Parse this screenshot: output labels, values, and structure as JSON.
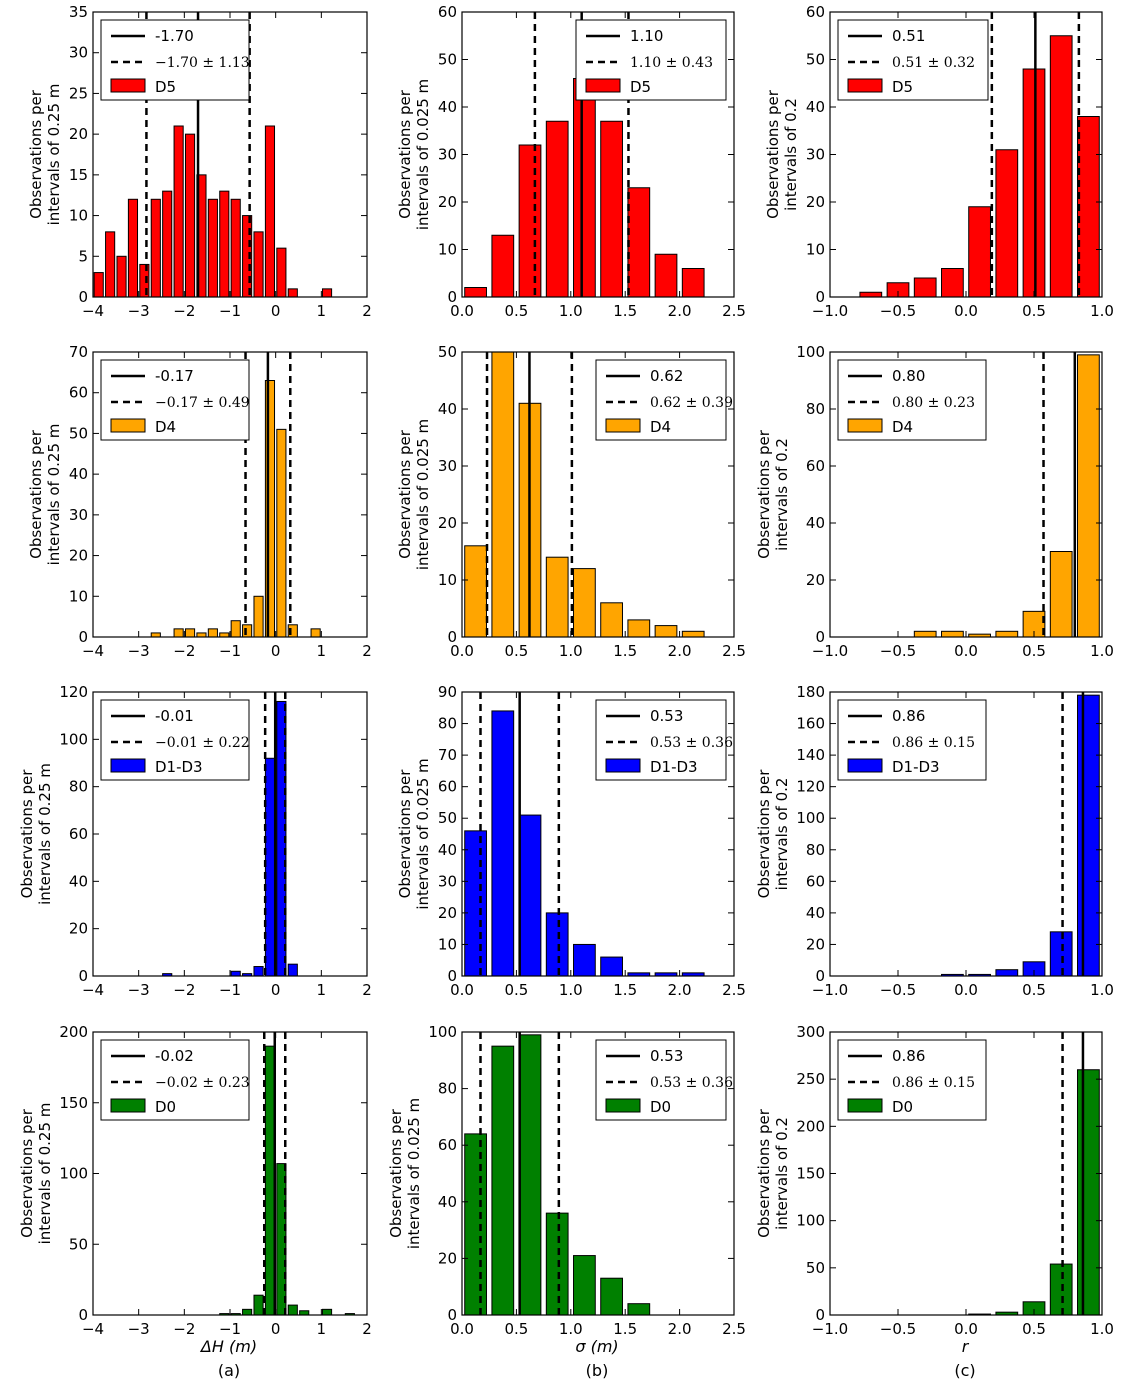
{
  "chart_data": [
    {
      "type": "bar",
      "panel": "a-D5",
      "categories": [
        "-3.875",
        "-3.625",
        "-3.375",
        "-3.125",
        "-2.875",
        "-2.625",
        "-2.375",
        "-2.125",
        "-1.875",
        "-1.625",
        "-1.375",
        "-1.125",
        "-0.875",
        "-0.625",
        "-0.375",
        "-0.125",
        "0.125",
        "0.375",
        "0.625",
        "0.875",
        "1.125"
      ],
      "values": [
        3,
        8,
        5,
        12,
        4,
        12,
        13,
        21,
        20,
        15,
        12,
        13,
        12,
        10,
        8,
        21,
        6,
        1,
        0,
        0,
        1
      ],
      "bar_width": 0.25,
      "xlim": [
        -4,
        2
      ],
      "ylim": [
        0,
        35
      ],
      "xticks": [
        "−4",
        "−3",
        "−2",
        "−1",
        "0",
        "1",
        "2"
      ],
      "yticks": [
        "0",
        "5",
        "10",
        "15",
        "20",
        "25",
        "30",
        "35"
      ],
      "ylabel": [
        "Observations per",
        "intervals of 0.25 m"
      ],
      "mean": -1.7,
      "std": 1.13,
      "color": "#ff0000",
      "legend": {
        "mean": "-1.70",
        "range": "−1.70 ± 1.13",
        "series": "D5",
        "position": "upper left"
      }
    },
    {
      "type": "bar",
      "panel": "b-D5",
      "categories": [
        "0.125",
        "0.375",
        "0.625",
        "0.875",
        "1.125",
        "1.375",
        "1.625",
        "1.875",
        "2.125"
      ],
      "values": [
        2,
        13,
        32,
        37,
        46,
        37,
        23,
        9,
        6
      ],
      "bar_width": 0.25,
      "xlim": [
        0,
        2.5
      ],
      "ylim": [
        0,
        60
      ],
      "xticks": [
        "0.0",
        "0.5",
        "1.0",
        "1.5",
        "2.0",
        "2.5"
      ],
      "yticks": [
        "0",
        "10",
        "20",
        "30",
        "40",
        "50",
        "60"
      ],
      "ylabel": [
        "Observations per",
        "intervals of 0.025 m"
      ],
      "mean": 1.1,
      "std": 0.43,
      "color": "#ff0000",
      "legend": {
        "mean": "1.10",
        "range": "1.10 ± 0.43",
        "series": "D5",
        "position": "upper right"
      }
    },
    {
      "type": "bar",
      "panel": "c-D5",
      "categories": [
        "-0.9",
        "-0.7",
        "-0.5",
        "-0.3",
        "-0.1",
        "0.1",
        "0.3",
        "0.5",
        "0.7",
        "0.9"
      ],
      "values": [
        0,
        1,
        3,
        4,
        6,
        19,
        31,
        48,
        55,
        38
      ],
      "bar_width": 0.2,
      "xlim": [
        -1,
        1
      ],
      "ylim": [
        0,
        60
      ],
      "xticks": [
        "−1.0",
        "−0.5",
        "0.0",
        "0.5",
        "1.0"
      ],
      "yticks": [
        "0",
        "10",
        "20",
        "30",
        "40",
        "50",
        "60"
      ],
      "ylabel": [
        "Observations per",
        "intervals of 0.2"
      ],
      "mean": 0.51,
      "std": 0.32,
      "color": "#ff0000",
      "legend": {
        "mean": "0.51",
        "range": "0.51 ± 0.32",
        "series": "D5",
        "position": "upper left"
      }
    },
    {
      "type": "bar",
      "panel": "a-D4",
      "categories": [
        "-2.625",
        "-2.125",
        "-1.875",
        "-1.625",
        "-1.375",
        "-1.125",
        "-0.875",
        "-0.625",
        "-0.375",
        "-0.125",
        "0.125",
        "0.375",
        "0.875"
      ],
      "values": [
        1,
        2,
        2,
        1,
        2,
        1,
        4,
        3,
        10,
        63,
        51,
        3,
        2
      ],
      "bar_width": 0.25,
      "xlim": [
        -4,
        2
      ],
      "ylim": [
        0,
        70
      ],
      "xticks": [
        "−4",
        "−3",
        "−2",
        "−1",
        "0",
        "1",
        "2"
      ],
      "yticks": [
        "0",
        "10",
        "20",
        "30",
        "40",
        "50",
        "60",
        "70"
      ],
      "ylabel": [
        "Observations per",
        "intervals of 0.25 m"
      ],
      "mean": -0.17,
      "std": 0.49,
      "color": "#ffa500",
      "legend": {
        "mean": "-0.17",
        "range": "−0.17 ± 0.49",
        "series": "D4",
        "position": "upper left"
      }
    },
    {
      "type": "bar",
      "panel": "b-D4",
      "categories": [
        "0.125",
        "0.375",
        "0.625",
        "0.875",
        "1.125",
        "1.375",
        "1.625",
        "1.875",
        "2.125"
      ],
      "values": [
        16,
        50,
        41,
        14,
        12,
        6,
        3,
        2,
        1
      ],
      "bar_width": 0.25,
      "xlim": [
        0,
        2.5
      ],
      "ylim": [
        0,
        50
      ],
      "xticks": [
        "0.0",
        "0.5",
        "1.0",
        "1.5",
        "2.0",
        "2.5"
      ],
      "yticks": [
        "0",
        "10",
        "20",
        "30",
        "40",
        "50"
      ],
      "ylabel": [
        "Observations per",
        "intervals of 0.025 m"
      ],
      "mean": 0.62,
      "std": 0.39,
      "color": "#ffa500",
      "legend": {
        "mean": "0.62",
        "range": "0.62 ± 0.39",
        "series": "D4",
        "position": "upper right"
      }
    },
    {
      "type": "bar",
      "panel": "c-D4",
      "categories": [
        "-0.9",
        "-0.7",
        "-0.5",
        "-0.3",
        "-0.1",
        "0.1",
        "0.3",
        "0.5",
        "0.7",
        "0.9"
      ],
      "values": [
        0,
        0,
        0,
        2,
        2,
        1,
        2,
        9,
        30,
        99
      ],
      "bar_width": 0.2,
      "xlim": [
        -1,
        1
      ],
      "ylim": [
        0,
        100
      ],
      "xticks": [
        "−1.0",
        "−0.5",
        "0.0",
        "0.5",
        "1.0"
      ],
      "yticks": [
        "0",
        "20",
        "40",
        "60",
        "80",
        "100"
      ],
      "ylabel": [
        "Observations per",
        "intervals of 0.2"
      ],
      "mean": 0.8,
      "std": 0.23,
      "color": "#ffa500",
      "legend": {
        "mean": "0.80",
        "range": "0.80 ± 0.23",
        "series": "D4",
        "position": "upper left"
      }
    },
    {
      "type": "bar",
      "panel": "a-D1-D3",
      "categories": [
        "-2.375",
        "-0.875",
        "-0.625",
        "-0.375",
        "-0.125",
        "0.125",
        "0.375"
      ],
      "values": [
        1,
        2,
        1,
        4,
        92,
        116,
        5
      ],
      "bar_width": 0.25,
      "xlim": [
        -4,
        2
      ],
      "ylim": [
        0,
        120
      ],
      "xticks": [
        "−4",
        "−3",
        "−2",
        "−1",
        "0",
        "1",
        "2"
      ],
      "yticks": [
        "0",
        "20",
        "40",
        "60",
        "80",
        "100",
        "120"
      ],
      "ylabel": [
        "Observations per",
        "intervals of 0.25 m"
      ],
      "mean": -0.01,
      "std": 0.22,
      "color": "#0000ff",
      "legend": {
        "mean": "-0.01",
        "range": "−0.01 ± 0.22",
        "series": "D1-D3",
        "position": "upper left"
      }
    },
    {
      "type": "bar",
      "panel": "b-D1-D3",
      "categories": [
        "0.125",
        "0.375",
        "0.625",
        "0.875",
        "1.125",
        "1.375",
        "1.625",
        "1.875",
        "2.125"
      ],
      "values": [
        46,
        84,
        51,
        20,
        10,
        6,
        1,
        1,
        1
      ],
      "bar_width": 0.25,
      "xlim": [
        0,
        2.5
      ],
      "ylim": [
        0,
        90
      ],
      "xticks": [
        "0.0",
        "0.5",
        "1.0",
        "1.5",
        "2.0",
        "2.5"
      ],
      "yticks": [
        "0",
        "10",
        "20",
        "30",
        "40",
        "50",
        "60",
        "70",
        "80",
        "90"
      ],
      "ylabel": [
        "Observations per",
        "intervals of 0.025 m"
      ],
      "mean": 0.53,
      "std": 0.36,
      "color": "#0000ff",
      "legend": {
        "mean": "0.53",
        "range": "0.53 ± 0.36",
        "series": "D1-D3",
        "position": "upper right"
      }
    },
    {
      "type": "bar",
      "panel": "c-D1-D3",
      "categories": [
        "-0.9",
        "-0.7",
        "-0.5",
        "-0.3",
        "-0.1",
        "0.1",
        "0.3",
        "0.5",
        "0.7",
        "0.9"
      ],
      "values": [
        0,
        0,
        0,
        0,
        1,
        1,
        4,
        9,
        28,
        178
      ],
      "bar_width": 0.2,
      "xlim": [
        -1,
        1
      ],
      "ylim": [
        0,
        180
      ],
      "xticks": [
        "−1.0",
        "−0.5",
        "0.0",
        "0.5",
        "1.0"
      ],
      "yticks": [
        "0",
        "20",
        "40",
        "60",
        "80",
        "100",
        "120",
        "140",
        "160",
        "180"
      ],
      "ylabel": [
        "Observations per",
        "intervals of 0.2"
      ],
      "mean": 0.86,
      "std": 0.15,
      "color": "#0000ff",
      "legend": {
        "mean": "0.86",
        "range": "0.86 ± 0.15",
        "series": "D1-D3",
        "position": "upper left"
      }
    },
    {
      "type": "bar",
      "panel": "a-D0",
      "categories": [
        "-1.125",
        "-0.875",
        "-0.625",
        "-0.375",
        "-0.125",
        "0.125",
        "0.375",
        "0.625",
        "0.875",
        "1.125",
        "1.375",
        "1.625"
      ],
      "values": [
        1,
        1,
        4,
        14,
        190,
        107,
        7,
        3,
        0,
        4,
        0,
        1
      ],
      "bar_width": 0.25,
      "xlim": [
        -4,
        2
      ],
      "ylim": [
        0,
        200
      ],
      "xticks": [
        "−4",
        "−3",
        "−2",
        "−1",
        "0",
        "1",
        "2"
      ],
      "yticks": [
        "0",
        "50",
        "100",
        "150",
        "200"
      ],
      "ylabel": [
        "Observations per",
        "intervals of 0.25 m"
      ],
      "mean": -0.02,
      "std": 0.23,
      "color": "#008000",
      "legend": {
        "mean": "-0.02",
        "range": "−0.02 ± 0.23",
        "series": "D0",
        "position": "upper left"
      }
    },
    {
      "type": "bar",
      "panel": "b-D0",
      "categories": [
        "0.125",
        "0.375",
        "0.625",
        "0.875",
        "1.125",
        "1.375",
        "1.625"
      ],
      "values": [
        64,
        95,
        99,
        36,
        21,
        13,
        4
      ],
      "bar_width": 0.25,
      "xlim": [
        0,
        2.5
      ],
      "ylim": [
        0,
        100
      ],
      "xticks": [
        "0.0",
        "0.5",
        "1.0",
        "1.5",
        "2.0",
        "2.5"
      ],
      "yticks": [
        "0",
        "20",
        "40",
        "60",
        "80",
        "100"
      ],
      "ylabel": [
        "Observations per",
        "intervals of 0.025 m"
      ],
      "mean": 0.53,
      "std": 0.36,
      "color": "#008000",
      "legend": {
        "mean": "0.53",
        "range": "0.53 ± 0.36",
        "series": "D0",
        "position": "upper right"
      }
    },
    {
      "type": "bar",
      "panel": "c-D0",
      "categories": [
        "-0.9",
        "-0.7",
        "-0.5",
        "-0.3",
        "-0.1",
        "0.1",
        "0.3",
        "0.5",
        "0.7",
        "0.9"
      ],
      "values": [
        0,
        0,
        0,
        0,
        0,
        1,
        3,
        14,
        54,
        260
      ],
      "bar_width": 0.2,
      "xlim": [
        -1,
        1
      ],
      "ylim": [
        0,
        300
      ],
      "xticks": [
        "−1.0",
        "−0.5",
        "0.0",
        "0.5",
        "1.0"
      ],
      "yticks": [
        "0",
        "50",
        "100",
        "150",
        "200",
        "250",
        "300"
      ],
      "ylabel": [
        "Observations per",
        "intervals of 0.2"
      ],
      "mean": 0.86,
      "std": 0.15,
      "color": "#008000",
      "legend": {
        "mean": "0.86",
        "range": "0.86 ± 0.15",
        "series": "D0",
        "position": "upper left"
      }
    }
  ],
  "labels": {
    "col_a_xlabel": "ΔH (m)",
    "col_b_xlabel": "σ (m)",
    "col_c_xlabel": "r",
    "col_a_tag": "(a)",
    "col_b_tag": "(b)",
    "col_c_tag": "(c)"
  }
}
